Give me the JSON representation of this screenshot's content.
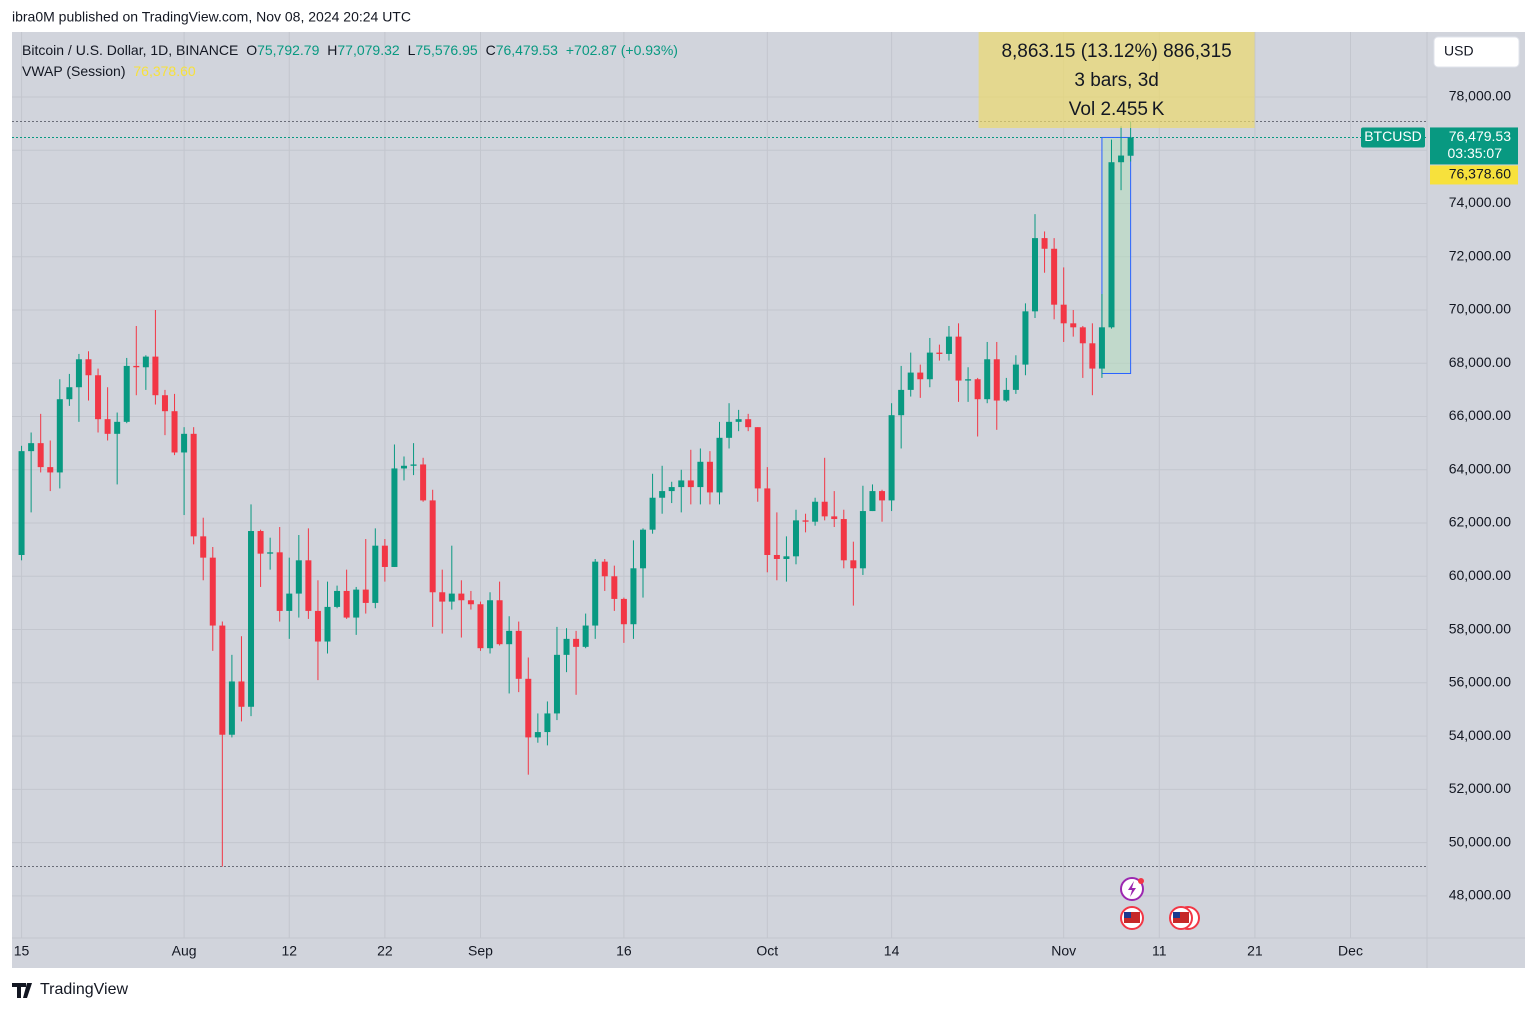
{
  "page": {
    "attribution": "ibra0M published on TradingView.com, Nov 08, 2024 20:24 UTC",
    "logo": "TradingView",
    "currency_button": "USD"
  },
  "chart_data": {
    "type": "candlestick",
    "symbol": "Bitcoin / U.S. Dollar, 1D, BINANCE",
    "ohlc_legend": [
      {
        "key": "O",
        "value": "75,792.79"
      },
      {
        "key": "H",
        "value": "77,079.32"
      },
      {
        "key": "L",
        "value": "75,576.95"
      },
      {
        "key": "C",
        "value": "76,479.53"
      }
    ],
    "change": "+702.87 (+0.93%)",
    "indicator": {
      "name": "VWAP (Session)",
      "value_label": "76,378.60"
    },
    "last_price": {
      "ticker": "BTCUSD",
      "label": "76,479.53",
      "countdown": "03:35:07"
    },
    "measure": {
      "from": "Nov 5",
      "to": "Nov 8",
      "range": [
        67616,
        76480
      ],
      "lines": [
        "8,863.15 (13.12%) 886,315",
        "3 bars, 3d",
        "Vol 2.455 K"
      ]
    },
    "up_color": "#089981",
    "down_color": "#f23645",
    "xlim": [
      "Jul 14",
      "Dec 9"
    ],
    "xticks": [
      {
        "value": "Jul 15",
        "label": "15"
      },
      {
        "value": "Aug 1",
        "label": "Aug"
      },
      {
        "value": "Aug 12",
        "label": "12"
      },
      {
        "value": "Aug 22",
        "label": "22"
      },
      {
        "value": "Sep 1",
        "label": "Sep"
      },
      {
        "value": "Sep 16",
        "label": "16"
      },
      {
        "value": "Oct 1",
        "label": "Oct"
      },
      {
        "value": "Oct 14",
        "label": "14"
      },
      {
        "value": "Nov 1",
        "label": "Nov"
      },
      {
        "value": "Nov 11",
        "label": "11"
      },
      {
        "value": "Nov 21",
        "label": "21"
      },
      {
        "value": "Dec 1",
        "label": "Dec"
      }
    ],
    "ylim": [
      45290,
      80440
    ],
    "yticks": [
      {
        "value": 48000,
        "label": "48,000.00"
      },
      {
        "value": 50000,
        "label": "50,000.00"
      },
      {
        "value": 52000,
        "label": "52,000.00"
      },
      {
        "value": 54000,
        "label": "54,000.00"
      },
      {
        "value": 56000,
        "label": "56,000.00"
      },
      {
        "value": 58000,
        "label": "58,000.00"
      },
      {
        "value": 60000,
        "label": "60,000.00"
      },
      {
        "value": 62000,
        "label": "62,000.00"
      },
      {
        "value": 64000,
        "label": "64,000.00"
      },
      {
        "value": 66000,
        "label": "66,000.00"
      },
      {
        "value": 68000,
        "label": "68,000.00"
      },
      {
        "value": 70000,
        "label": "70,000.00"
      },
      {
        "value": 72000,
        "label": "72,000.00"
      },
      {
        "value": 74000,
        "label": "74,000.00"
      },
      {
        "value": 76000,
        "label": "76,000.00"
      },
      {
        "value": 78000,
        "label": "78,000.00"
      }
    ],
    "grid": true,
    "x": [
      "Jul 15",
      "Jul 16",
      "Jul 17",
      "Jul 18",
      "Jul 19",
      "Jul 20",
      "Jul 21",
      "Jul 22",
      "Jul 23",
      "Jul 24",
      "Jul 25",
      "Jul 26",
      "Jul 27",
      "Jul 28",
      "Jul 29",
      "Jul 30",
      "Jul 31",
      "Aug 1",
      "Aug 2",
      "Aug 3",
      "Aug 4",
      "Aug 5",
      "Aug 6",
      "Aug 7",
      "Aug 8",
      "Aug 9",
      "Aug 10",
      "Aug 11",
      "Aug 12",
      "Aug 13",
      "Aug 14",
      "Aug 15",
      "Aug 16",
      "Aug 17",
      "Aug 18",
      "Aug 19",
      "Aug 20",
      "Aug 21",
      "Aug 22",
      "Aug 23",
      "Aug 24",
      "Aug 25",
      "Aug 26",
      "Aug 27",
      "Aug 28",
      "Aug 29",
      "Aug 30",
      "Aug 31",
      "Sep 1",
      "Sep 2",
      "Sep 3",
      "Sep 4",
      "Sep 5",
      "Sep 6",
      "Sep 7",
      "Sep 8",
      "Sep 9",
      "Sep 10",
      "Sep 11",
      "Sep 12",
      "Sep 13",
      "Sep 14",
      "Sep 15",
      "Sep 16",
      "Sep 17",
      "Sep 18",
      "Sep 19",
      "Sep 20",
      "Sep 21",
      "Sep 22",
      "Sep 23",
      "Sep 24",
      "Sep 25",
      "Sep 26",
      "Sep 27",
      "Sep 28",
      "Sep 29",
      "Sep 30",
      "Oct 1",
      "Oct 2",
      "Oct 3",
      "Oct 4",
      "Oct 5",
      "Oct 6",
      "Oct 7",
      "Oct 8",
      "Oct 9",
      "Oct 10",
      "Oct 11",
      "Oct 12",
      "Oct 13",
      "Oct 14",
      "Oct 15",
      "Oct 16",
      "Oct 17",
      "Oct 18",
      "Oct 19",
      "Oct 20",
      "Oct 21",
      "Oct 22",
      "Oct 23",
      "Oct 24",
      "Oct 25",
      "Oct 26",
      "Oct 27",
      "Oct 28",
      "Oct 29",
      "Oct 30",
      "Oct 31",
      "Nov 1",
      "Nov 2",
      "Nov 3",
      "Nov 4",
      "Nov 5",
      "Nov 6",
      "Nov 7",
      "Nov 8"
    ],
    "open": [
      60800,
      64700,
      65000,
      64100,
      63900,
      66650,
      67100,
      68150,
      67550,
      65900,
      65350,
      65800,
      67900,
      67850,
      68250,
      66800,
      66200,
      64650,
      65350,
      61500,
      60700,
      58150,
      54050,
      56050,
      55100,
      61700,
      60850,
      60900,
      58700,
      59350,
      60600,
      58700,
      57550,
      58850,
      59450,
      58450,
      59500,
      59000,
      61150,
      60350,
      64050,
      64150,
      64200,
      62850,
      59400,
      59050,
      59350,
      59100,
      58950,
      57300,
      59100,
      57450,
      57950,
      56150,
      53950,
      54150,
      54850,
      57050,
      57650,
      57350,
      58150,
      60550,
      60000,
      59150,
      58200,
      60300,
      61750,
      62950,
      63200,
      63350,
      63600,
      63350,
      64300,
      63150,
      65200,
      65800,
      65900,
      65600,
      63300,
      60800,
      60650,
      60750,
      62100,
      62050,
      62800,
      62250,
      62150,
      60600,
      60300,
      62450,
      63200,
      62850,
      66050,
      67000,
      67650,
      67400,
      68400,
      68350,
      69000,
      67350,
      67400,
      66650,
      68150,
      66600,
      67000,
      67950,
      69950,
      72700,
      72300,
      70200,
      69500,
      69350,
      68750,
      67800,
      69350,
      75550,
      75792.79
    ],
    "high": [
      64900,
      65400,
      66100,
      65100,
      67400,
      67600,
      68350,
      68450,
      67800,
      67100,
      66150,
      68200,
      69400,
      68300,
      70000,
      67000,
      66850,
      65600,
      65600,
      62200,
      61100,
      58300,
      57050,
      57750,
      62700,
      61750,
      61450,
      61850,
      60700,
      61550,
      61800,
      59850,
      59800,
      59650,
      60250,
      59600,
      61400,
      61800,
      61400,
      64950,
      64500,
      65000,
      64450,
      63250,
      60250,
      61150,
      59850,
      59450,
      59050,
      59400,
      59800,
      58500,
      58300,
      56950,
      54850,
      55300,
      58100,
      58050,
      57950,
      58600,
      60650,
      60650,
      60400,
      59200,
      61350,
      61800,
      63850,
      64150,
      63550,
      64000,
      64750,
      64800,
      64700,
      65800,
      66500,
      66250,
      66100,
      65600,
      64100,
      62400,
      61500,
      62500,
      62350,
      62950,
      64450,
      63200,
      62500,
      61300,
      63400,
      63450,
      63250,
      66500,
      67900,
      68400,
      67950,
      68950,
      68700,
      69400,
      69500,
      67850,
      67450,
      68800,
      68800,
      67450,
      68300,
      70250,
      73600,
      72950,
      72700,
      71600,
      70000,
      69400,
      69500,
      70600,
      76400,
      76900,
      77079.32
    ],
    "low": [
      60600,
      62400,
      63900,
      63200,
      63300,
      66400,
      65800,
      66600,
      65400,
      65100,
      63450,
      65750,
      66800,
      67000,
      66450,
      65300,
      64550,
      62300,
      61200,
      59850,
      57200,
      49100,
      53950,
      54550,
      54750,
      59600,
      60250,
      58300,
      57650,
      58450,
      58400,
      56100,
      57100,
      58800,
      58400,
      57800,
      58600,
      58800,
      59800,
      60350,
      63600,
      63800,
      62800,
      58100,
      57850,
      58750,
      57700,
      58750,
      57200,
      57100,
      57400,
      55600,
      55650,
      52550,
      53750,
      53650,
      54600,
      56400,
      55550,
      57300,
      57650,
      59450,
      58700,
      57500,
      57650,
      59200,
      61600,
      62350,
      62750,
      62400,
      62700,
      62700,
      62700,
      62700,
      64800,
      65450,
      65450,
      62800,
      60150,
      59850,
      59800,
      60450,
      61650,
      61900,
      62100,
      61850,
      60300,
      58900,
      60050,
      62450,
      62050,
      62450,
      64800,
      66750,
      66700,
      67100,
      68100,
      68100,
      66550,
      66550,
      65250,
      66500,
      65500,
      66550,
      66850,
      67550,
      69700,
      71400,
      69650,
      68800,
      69000,
      67450,
      66800,
      67450,
      69300,
      74500,
      75576.95
    ],
    "close": [
      64700,
      65000,
      64100,
      63900,
      66650,
      67100,
      68150,
      67550,
      65900,
      65350,
      65800,
      67900,
      67850,
      68250,
      66800,
      66200,
      64650,
      65350,
      61500,
      60700,
      58150,
      54050,
      56050,
      55100,
      61700,
      60850,
      60900,
      58700,
      59350,
      60600,
      58700,
      57550,
      58850,
      59450,
      58450,
      59500,
      59000,
      61150,
      60350,
      64050,
      64150,
      64200,
      62850,
      59400,
      59050,
      59350,
      59100,
      58950,
      57300,
      59100,
      57450,
      57950,
      56150,
      53950,
      54150,
      54850,
      57050,
      57650,
      57350,
      58150,
      60550,
      60000,
      59150,
      58200,
      60300,
      61750,
      62950,
      63200,
      63350,
      63600,
      63350,
      64300,
      63150,
      65200,
      65800,
      65900,
      65600,
      63300,
      60800,
      60650,
      60750,
      62100,
      62050,
      62800,
      62250,
      62150,
      60600,
      60300,
      62450,
      63200,
      62850,
      66050,
      67000,
      67650,
      67400,
      68400,
      68350,
      69000,
      67350,
      67400,
      66650,
      68150,
      66600,
      67000,
      67950,
      69950,
      72700,
      72300,
      70200,
      69500,
      69350,
      68750,
      67800,
      69350,
      75550,
      75800,
      76479.53
    ]
  }
}
